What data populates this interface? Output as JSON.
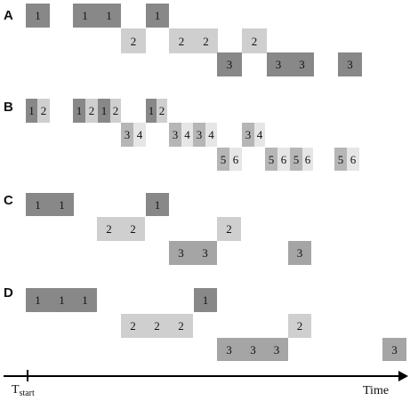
{
  "colors": {
    "level1": "#888888",
    "level2": "#cfcfcf",
    "level3": "#a5a5a5",
    "mid": "#b6b6b6",
    "light": "#e6e6e6"
  },
  "axis": {
    "start_main": "T",
    "start_sub": "start",
    "end_label": "Time"
  },
  "panels": [
    {
      "label": "A",
      "cells": [
        {
          "text": "1",
          "c": "level1"
        },
        {
          "text": "1",
          "c": "level1"
        },
        {
          "text": "1",
          "c": "level1"
        },
        {
          "text": "1",
          "c": "level1"
        },
        {
          "text": "2",
          "c": "level2"
        },
        {
          "text": "2",
          "c": "level2"
        },
        {
          "text": "2",
          "c": "level2"
        },
        {
          "text": "2",
          "c": "level2"
        },
        {
          "text": "3",
          "c": "level1"
        },
        {
          "text": "3",
          "c": "level1"
        },
        {
          "text": "3",
          "c": "level1"
        },
        {
          "text": "3",
          "c": "level1"
        }
      ]
    },
    {
      "label": "B",
      "cells": [
        {
          "text": "1",
          "c": "level1"
        },
        {
          "text": "2",
          "c": "level2"
        },
        {
          "text": "1",
          "c": "level1"
        },
        {
          "text": "2",
          "c": "level2"
        },
        {
          "text": "1",
          "c": "level1"
        },
        {
          "text": "2",
          "c": "level2"
        },
        {
          "text": "1",
          "c": "level1"
        },
        {
          "text": "2",
          "c": "level2"
        },
        {
          "text": "3",
          "c": "mid"
        },
        {
          "text": "4",
          "c": "light"
        },
        {
          "text": "3",
          "c": "mid"
        },
        {
          "text": "4",
          "c": "light"
        },
        {
          "text": "3",
          "c": "mid"
        },
        {
          "text": "4",
          "c": "light"
        },
        {
          "text": "3",
          "c": "mid"
        },
        {
          "text": "4",
          "c": "light"
        },
        {
          "text": "5",
          "c": "mid"
        },
        {
          "text": "6",
          "c": "light"
        },
        {
          "text": "5",
          "c": "mid"
        },
        {
          "text": "6",
          "c": "light"
        },
        {
          "text": "5",
          "c": "mid"
        },
        {
          "text": "6",
          "c": "light"
        },
        {
          "text": "5",
          "c": "mid"
        },
        {
          "text": "6",
          "c": "light"
        }
      ]
    },
    {
      "label": "C",
      "cells": [
        {
          "text": "1",
          "c": "level1"
        },
        {
          "text": "1",
          "c": "level1"
        },
        {
          "text": "1",
          "c": "level1"
        },
        {
          "text": "2",
          "c": "level2"
        },
        {
          "text": "2",
          "c": "level2"
        },
        {
          "text": "2",
          "c": "level2"
        },
        {
          "text": "3",
          "c": "level3"
        },
        {
          "text": "3",
          "c": "level3"
        },
        {
          "text": "3",
          "c": "level3"
        }
      ]
    },
    {
      "label": "D",
      "cells": [
        {
          "text": "1",
          "c": "level1"
        },
        {
          "text": "1",
          "c": "level1"
        },
        {
          "text": "1",
          "c": "level1"
        },
        {
          "text": "1",
          "c": "level1"
        },
        {
          "text": "2",
          "c": "level2"
        },
        {
          "text": "2",
          "c": "level2"
        },
        {
          "text": "2",
          "c": "level2"
        },
        {
          "text": "2",
          "c": "level2"
        },
        {
          "text": "3",
          "c": "level3"
        },
        {
          "text": "3",
          "c": "level3"
        },
        {
          "text": "3",
          "c": "level3"
        },
        {
          "text": "3",
          "c": "level3"
        }
      ]
    }
  ]
}
